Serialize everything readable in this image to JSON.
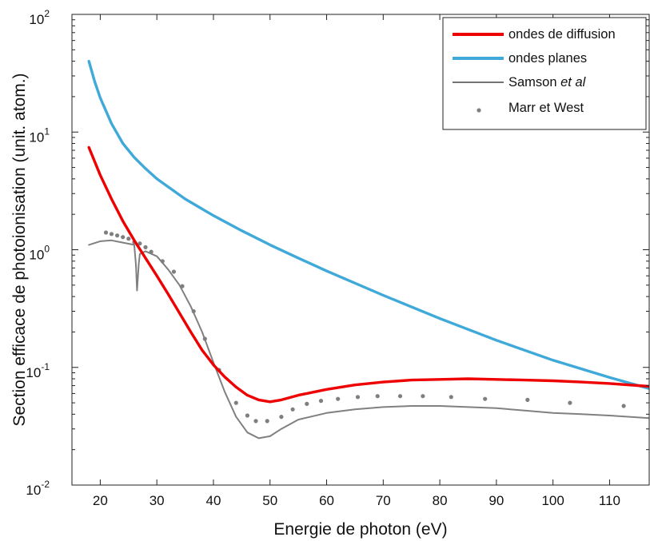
{
  "chart_data": {
    "type": "line",
    "title": "",
    "xlabel": "Energie de photon (eV)",
    "ylabel": "Section efficace de photoionisation (unit. atom.)",
    "xlim": [
      15,
      117
    ],
    "ylim": [
      0.01,
      100
    ],
    "yscale": "log",
    "x_ticks": [
      20,
      30,
      40,
      50,
      60,
      70,
      80,
      90,
      100,
      110
    ],
    "y_ticks": [
      {
        "value": 0.01,
        "base": "10",
        "exp": "-2"
      },
      {
        "value": 0.1,
        "base": "10",
        "exp": "-1"
      },
      {
        "value": 1,
        "base": "10",
        "exp": "0"
      },
      {
        "value": 10,
        "base": "10",
        "exp": "1"
      },
      {
        "value": 100,
        "base": "10",
        "exp": "2"
      }
    ],
    "grid": false,
    "legend_position": "top-right",
    "series": [
      {
        "name": "ondes de diffusion",
        "style": "line",
        "color": "#ee0000",
        "x": [
          18,
          20,
          22,
          24,
          26,
          28,
          30,
          32,
          34,
          36,
          38,
          40,
          42,
          44,
          46,
          48,
          50,
          52,
          55,
          60,
          65,
          70,
          75,
          80,
          85,
          90,
          95,
          100,
          105,
          110,
          117
        ],
        "y": [
          7.4,
          4.3,
          2.7,
          1.75,
          1.2,
          0.85,
          0.6,
          0.42,
          0.29,
          0.2,
          0.14,
          0.105,
          0.083,
          0.068,
          0.058,
          0.053,
          0.051,
          0.053,
          0.058,
          0.065,
          0.071,
          0.075,
          0.078,
          0.079,
          0.08,
          0.079,
          0.078,
          0.077,
          0.075,
          0.073,
          0.069
        ]
      },
      {
        "name": "ondes planes",
        "style": "line",
        "color": "#3fa9d9",
        "x": [
          18,
          19,
          20,
          22,
          24,
          26,
          28,
          30,
          35,
          40,
          45,
          50,
          55,
          60,
          70,
          80,
          90,
          100,
          110,
          117
        ],
        "y": [
          40,
          27,
          19.5,
          11.8,
          8,
          6.1,
          4.9,
          4.0,
          2.7,
          1.95,
          1.45,
          1.1,
          0.85,
          0.66,
          0.41,
          0.26,
          0.17,
          0.115,
          0.082,
          0.066
        ]
      },
      {
        "name": "Samson et al",
        "name_parts": [
          "Samson ",
          "et al"
        ],
        "style": "line",
        "color": "#808080",
        "x": [
          18,
          20,
          22,
          24,
          26,
          26.3,
          26.5,
          26.8,
          27,
          28,
          30,
          32,
          34,
          36,
          38,
          40,
          42,
          44,
          46,
          48,
          50,
          52,
          55,
          60,
          65,
          70,
          75,
          80,
          85,
          90,
          95,
          100,
          105,
          110,
          117
        ],
        "y": [
          1.1,
          1.18,
          1.2,
          1.15,
          1.1,
          0.75,
          0.45,
          0.75,
          0.92,
          0.97,
          0.88,
          0.68,
          0.5,
          0.33,
          0.2,
          0.11,
          0.062,
          0.038,
          0.028,
          0.025,
          0.026,
          0.03,
          0.036,
          0.041,
          0.044,
          0.046,
          0.047,
          0.047,
          0.046,
          0.045,
          0.043,
          0.041,
          0.04,
          0.039,
          0.037
        ]
      },
      {
        "name": "Marr et West",
        "style": "points",
        "color": "#7f7f7f",
        "x": [
          21,
          22,
          23,
          24,
          25,
          26,
          27,
          28,
          29,
          31,
          33,
          34.5,
          36.5,
          38.5,
          41,
          44,
          46,
          47.5,
          49.5,
          52,
          54,
          56.5,
          59,
          62,
          65.5,
          69,
          73,
          77,
          82,
          88,
          95.5,
          103,
          112.5
        ],
        "y": [
          1.4,
          1.36,
          1.32,
          1.28,
          1.24,
          1.16,
          1.13,
          1.05,
          0.96,
          0.8,
          0.65,
          0.49,
          0.3,
          0.175,
          0.095,
          0.05,
          0.039,
          0.035,
          0.035,
          0.038,
          0.044,
          0.049,
          0.052,
          0.054,
          0.056,
          0.057,
          0.057,
          0.057,
          0.056,
          0.054,
          0.053,
          0.05,
          0.047
        ]
      }
    ]
  }
}
